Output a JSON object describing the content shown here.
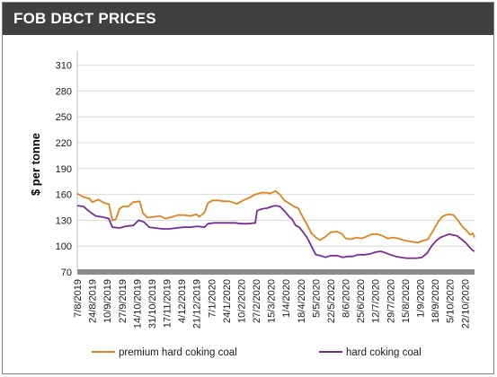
{
  "header": {
    "title": "FOB DBCT PRICES"
  },
  "colors": {
    "premium": "#e2811d",
    "hard": "#7a2c95",
    "axis_band": "#8c8c8c",
    "grid": "#d9d9d9"
  },
  "chart_data": {
    "type": "line",
    "title": "FOB DBCT PRICES",
    "xlabel": "",
    "ylabel": "$ per tonne",
    "ylim": [
      70,
      320
    ],
    "yticks": [
      70,
      100,
      130,
      160,
      190,
      220,
      250,
      280,
      310
    ],
    "grid": "horizontal",
    "legend": "bottom",
    "x_ticks": [
      "7/8/2019",
      "24/8/2019",
      "10/9/2019",
      "27/9/2019",
      "14/10/2019",
      "31/10/2019",
      "17/11/2019",
      "4/12/2019",
      "21/12/2019",
      "7/1/2020",
      "24/1/2020",
      "10/2/2020",
      "27/2/2020",
      "15/3/2020",
      "1/4/2020",
      "18/4/2020",
      "5/5/2020",
      "22/5/2020",
      "8/6/2020",
      "25/6/2020",
      "12/7/2020",
      "29/7/2020",
      "15/8/2020",
      "1/9/2020",
      "18/9/2020",
      "5/10/2020",
      "22/10/2020"
    ],
    "series": [
      {
        "name": "premium hard coking coal",
        "points": [
          [
            "7/8/2019",
            161
          ],
          [
            "14/8/2019",
            157
          ],
          [
            "21/8/2019",
            155
          ],
          [
            "24/8/2019",
            151
          ],
          [
            "31/8/2019",
            154
          ],
          [
            "7/9/2019",
            150
          ],
          [
            "12/9/2019",
            149
          ],
          [
            "16/9/2019",
            130
          ],
          [
            "20/9/2019",
            131
          ],
          [
            "24/9/2019",
            143
          ],
          [
            "28/9/2019",
            146
          ],
          [
            "4/10/2019",
            146
          ],
          [
            "10/10/2019",
            151
          ],
          [
            "17/10/2019",
            152
          ],
          [
            "21/10/2019",
            138
          ],
          [
            "26/10/2019",
            133
          ],
          [
            "2/11/2019",
            134
          ],
          [
            "9/11/2019",
            135
          ],
          [
            "16/11/2019",
            132
          ],
          [
            "23/11/2019",
            134
          ],
          [
            "30/11/2019",
            136
          ],
          [
            "7/12/2019",
            136
          ],
          [
            "14/12/2019",
            135
          ],
          [
            "21/12/2019",
            137
          ],
          [
            "24/12/2019",
            134
          ],
          [
            "30/12/2019",
            139
          ],
          [
            "3/1/2020",
            150
          ],
          [
            "8/1/2020",
            153
          ],
          [
            "15/1/2020",
            153
          ],
          [
            "22/1/2020",
            152
          ],
          [
            "28/1/2020",
            152
          ],
          [
            "5/2/2020",
            149
          ],
          [
            "12/2/2020",
            153
          ],
          [
            "19/2/2020",
            156
          ],
          [
            "26/2/2020",
            160
          ],
          [
            "4/3/2020",
            162
          ],
          [
            "10/3/2020",
            162
          ],
          [
            "14/3/2020",
            161
          ],
          [
            "20/3/2020",
            164
          ],
          [
            "25/3/2020",
            160
          ],
          [
            "30/3/2020",
            153
          ],
          [
            "4/4/2020",
            150
          ],
          [
            "10/4/2020",
            146
          ],
          [
            "15/4/2020",
            144
          ],
          [
            "20/4/2020",
            134
          ],
          [
            "25/4/2020",
            125
          ],
          [
            "30/4/2020",
            115
          ],
          [
            "5/5/2020",
            110
          ],
          [
            "10/5/2020",
            107
          ],
          [
            "16/5/2020",
            111
          ],
          [
            "22/5/2020",
            116
          ],
          [
            "29/5/2020",
            117
          ],
          [
            "4/6/2020",
            114
          ],
          [
            "8/6/2020",
            109
          ],
          [
            "14/6/2020",
            108
          ],
          [
            "20/6/2020",
            110
          ],
          [
            "26/6/2020",
            109
          ],
          [
            "2/7/2020",
            111
          ],
          [
            "8/7/2020",
            114
          ],
          [
            "14/7/2020",
            114
          ],
          [
            "20/7/2020",
            112
          ],
          [
            "26/7/2020",
            109
          ],
          [
            "1/8/2020",
            110
          ],
          [
            "7/8/2020",
            109
          ],
          [
            "13/8/2020",
            107
          ],
          [
            "17/8/2020",
            106
          ],
          [
            "23/8/2020",
            105
          ],
          [
            "29/8/2020",
            104
          ],
          [
            "4/9/2020",
            106
          ],
          [
            "10/9/2020",
            108
          ],
          [
            "14/9/2020",
            115
          ],
          [
            "18/9/2020",
            122
          ],
          [
            "22/9/2020",
            129
          ],
          [
            "26/9/2020",
            134
          ],
          [
            "30/9/2020",
            136
          ],
          [
            "4/10/2020",
            137
          ],
          [
            "9/10/2020",
            136
          ],
          [
            "14/10/2020",
            130
          ],
          [
            "19/10/2020",
            123
          ],
          [
            "24/10/2020",
            118
          ],
          [
            "28/10/2020",
            113
          ],
          [
            "31/10/2020",
            115
          ],
          [
            "2/11/2020",
            110
          ]
        ]
      },
      {
        "name": "hard coking coal",
        "points": [
          [
            "7/8/2019",
            147
          ],
          [
            "14/8/2019",
            146
          ],
          [
            "21/8/2019",
            140
          ],
          [
            "28/8/2019",
            135
          ],
          [
            "4/9/2019",
            134
          ],
          [
            "12/9/2019",
            132
          ],
          [
            "16/9/2019",
            122
          ],
          [
            "24/9/2019",
            121
          ],
          [
            "1/10/2019",
            123
          ],
          [
            "10/10/2019",
            124
          ],
          [
            "16/10/2019",
            130
          ],
          [
            "22/10/2019",
            128
          ],
          [
            "28/10/2019",
            122
          ],
          [
            "4/11/2019",
            121
          ],
          [
            "12/11/2019",
            120
          ],
          [
            "20/11/2019",
            120
          ],
          [
            "28/11/2019",
            121
          ],
          [
            "6/12/2019",
            122
          ],
          [
            "14/12/2019",
            122
          ],
          [
            "22/12/2019",
            123
          ],
          [
            "30/12/2019",
            122
          ],
          [
            "3/1/2020",
            126
          ],
          [
            "10/1/2020",
            127
          ],
          [
            "18/1/2020",
            127
          ],
          [
            "26/1/2020",
            127
          ],
          [
            "3/2/2020",
            127
          ],
          [
            "10/2/2020",
            126
          ],
          [
            "18/2/2020",
            126
          ],
          [
            "26/2/2020",
            127
          ],
          [
            "28/2/2020",
            141
          ],
          [
            "4/3/2020",
            143
          ],
          [
            "10/3/2020",
            144
          ],
          [
            "16/3/2020",
            146
          ],
          [
            "20/3/2020",
            147
          ],
          [
            "25/3/2020",
            146
          ],
          [
            "30/3/2020",
            141
          ],
          [
            "4/4/2020",
            135
          ],
          [
            "8/4/2020",
            131
          ],
          [
            "12/4/2020",
            124
          ],
          [
            "16/4/2020",
            122
          ],
          [
            "20/4/2020",
            117
          ],
          [
            "25/4/2020",
            110
          ],
          [
            "30/4/2020",
            100
          ],
          [
            "5/5/2020",
            90
          ],
          [
            "10/5/2020",
            89
          ],
          [
            "16/5/2020",
            87
          ],
          [
            "22/5/2020",
            89
          ],
          [
            "29/5/2020",
            89
          ],
          [
            "5/6/2020",
            87
          ],
          [
            "10/6/2020",
            88
          ],
          [
            "16/6/2020",
            88
          ],
          [
            "22/6/2020",
            90
          ],
          [
            "30/6/2020",
            90
          ],
          [
            "6/7/2020",
            91
          ],
          [
            "12/7/2020",
            93
          ],
          [
            "18/7/2020",
            94
          ],
          [
            "24/7/2020",
            92
          ],
          [
            "29/7/2020",
            90
          ],
          [
            "4/8/2020",
            88
          ],
          [
            "10/8/2020",
            87
          ],
          [
            "16/8/2020",
            86
          ],
          [
            "22/8/2020",
            86
          ],
          [
            "28/8/2020",
            86
          ],
          [
            "3/9/2020",
            87
          ],
          [
            "9/9/2020",
            92
          ],
          [
            "14/9/2020",
            100
          ],
          [
            "19/9/2020",
            106
          ],
          [
            "24/9/2020",
            110
          ],
          [
            "29/9/2020",
            112
          ],
          [
            "4/10/2020",
            114
          ],
          [
            "8/10/2020",
            113
          ],
          [
            "13/10/2020",
            112
          ],
          [
            "18/10/2020",
            108
          ],
          [
            "23/10/2020",
            104
          ],
          [
            "28/10/2020",
            98
          ],
          [
            "31/10/2020",
            95
          ],
          [
            "2/11/2020",
            94
          ]
        ]
      }
    ]
  }
}
